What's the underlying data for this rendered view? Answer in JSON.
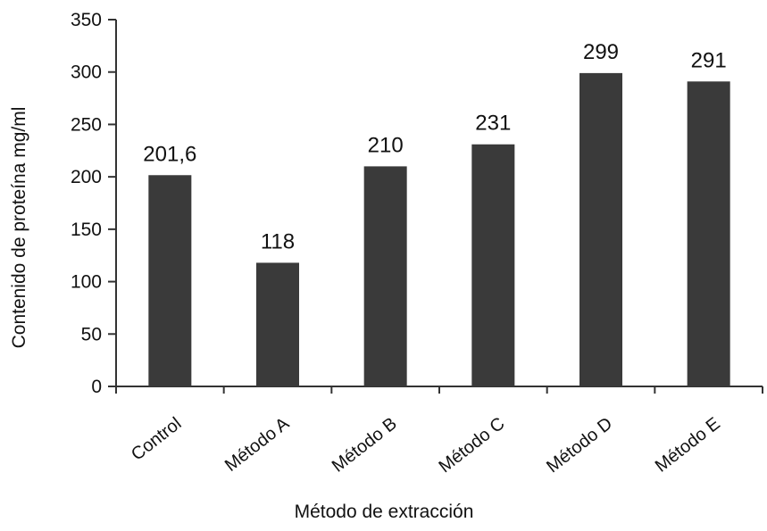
{
  "chart_data": {
    "type": "bar",
    "title": "",
    "xlabel": "Método de extracción",
    "ylabel": "Contenido de proteína mg/ml",
    "categories": [
      "Control",
      "Método A",
      "Método B",
      "Método C",
      "Método D",
      "Método E"
    ],
    "values": [
      201.6,
      118,
      210,
      231,
      299,
      291
    ],
    "value_labels": [
      "201,6",
      "118",
      "210",
      "231",
      "299",
      "291"
    ],
    "ylim": [
      0,
      350
    ],
    "yticks": [
      0,
      50,
      100,
      150,
      200,
      250,
      300,
      350
    ],
    "grid": false,
    "legend": "none",
    "bar_color": "#3a3a3a"
  }
}
